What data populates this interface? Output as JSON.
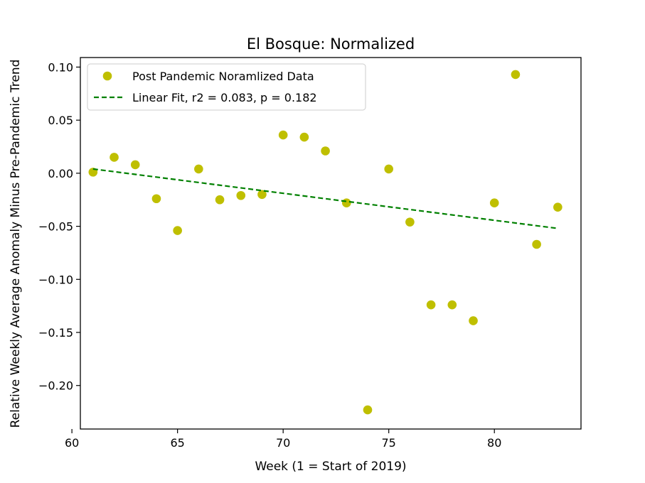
{
  "chart_data": {
    "type": "scatter",
    "title": "El Bosque: Normalized",
    "xlabel": "Week (1 = Start of 2019)",
    "ylabel": "Relative Weekly Average Anomaly Minus Pre-Pandemic Trend",
    "xlim": [
      60.4,
      84.1
    ],
    "ylim": [
      -0.241,
      0.109
    ],
    "xticks": [
      60,
      65,
      70,
      75,
      80
    ],
    "xtick_labels": [
      "60",
      "65",
      "70",
      "75",
      "80"
    ],
    "yticks": [
      0.1,
      0.05,
      0.0,
      -0.05,
      -0.1,
      -0.15,
      -0.2
    ],
    "ytick_labels": [
      "0.10",
      "0.05",
      "0.00",
      "−0.05",
      "−0.10",
      "−0.15",
      "−0.20"
    ],
    "grid": false,
    "legend_position": "top-left",
    "series": [
      {
        "name": "Post Pandemic Noramlized Data",
        "kind": "scatter",
        "color": "#bfbf00",
        "points": [
          [
            61,
            0.001
          ],
          [
            62,
            0.015
          ],
          [
            63,
            0.008
          ],
          [
            64,
            -0.024
          ],
          [
            65,
            -0.054
          ],
          [
            66,
            0.004
          ],
          [
            67,
            -0.025
          ],
          [
            68,
            -0.021
          ],
          [
            69,
            -0.02
          ],
          [
            70,
            0.036
          ],
          [
            71,
            0.034
          ],
          [
            72,
            0.021
          ],
          [
            73,
            -0.028
          ],
          [
            74,
            -0.223
          ],
          [
            75,
            0.004
          ],
          [
            76,
            -0.046
          ],
          [
            77,
            -0.124
          ],
          [
            78,
            -0.124
          ],
          [
            79,
            -0.139
          ],
          [
            80,
            -0.028
          ],
          [
            81,
            0.093
          ],
          [
            82,
            -0.067
          ],
          [
            83,
            -0.032
          ]
        ]
      },
      {
        "name": "Linear Fit, r2 = 0.083, p = 0.182",
        "kind": "line",
        "style": "dashed",
        "color": "#008000",
        "points": [
          [
            61,
            0.004
          ],
          [
            83,
            -0.052
          ]
        ]
      }
    ]
  }
}
